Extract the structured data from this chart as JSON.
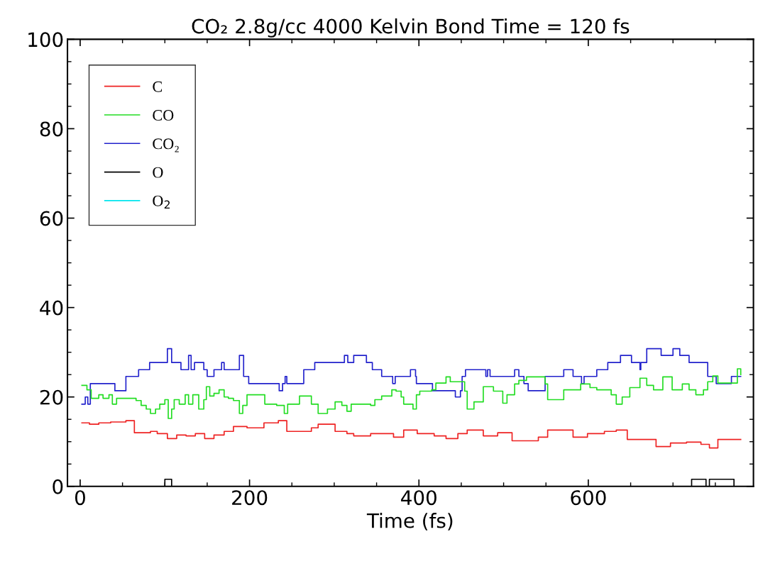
{
  "chart_data": {
    "type": "step",
    "title": "CO₂ 2.8g/cc 4000 Kelvin Bond Time = 120 fs",
    "xlabel": "Time (fs)",
    "xlim": [
      -15,
      795
    ],
    "xticks": [
      0,
      200,
      400,
      600
    ],
    "ylim": [
      0,
      100
    ],
    "yticks": [
      0,
      20,
      40,
      60,
      80,
      100
    ],
    "legend": "top left",
    "grid": false,
    "series": [
      {
        "name": "C",
        "color": "#ee2222",
        "x": [
          2,
          11,
          22,
          36,
          54,
          64,
          83,
          91,
          103,
          114,
          125,
          136,
          147,
          158,
          170,
          181,
          197,
          217,
          234,
          244,
          273,
          281,
          301,
          315,
          323,
          343,
          370,
          382,
          398,
          418,
          432,
          446,
          457,
          476,
          493,
          510,
          541,
          552,
          582,
          599,
          619,
          633,
          646,
          680,
          697,
          716,
          733,
          743,
          753,
          780
        ],
        "values": [
          14.2,
          13.9,
          14.2,
          14.4,
          14.7,
          12,
          12.3,
          11.8,
          10.7,
          11.5,
          11.3,
          11.8,
          10.7,
          11.5,
          12.3,
          13.4,
          13.1,
          14.2,
          14.7,
          12.3,
          13.1,
          13.9,
          12.3,
          11.8,
          11.3,
          11.8,
          11,
          12.6,
          11.8,
          11.3,
          10.7,
          11.8,
          12.6,
          11.3,
          12,
          10.2,
          11,
          12.6,
          11,
          11.8,
          12.3,
          12.6,
          10.5,
          8.9,
          9.7,
          9.9,
          9.4,
          8.6,
          10.5,
          10.5
        ]
      },
      {
        "name": "CO",
        "color": "#22dd22",
        "x": [
          2,
          8,
          13,
          22,
          27,
          34,
          38,
          43,
          55,
          66,
          72,
          78,
          83,
          89,
          94,
          100,
          104,
          108,
          111,
          117,
          124,
          128,
          133,
          140,
          146,
          149,
          153,
          158,
          164,
          170,
          175,
          181,
          188,
          192,
          197,
          218,
          232,
          241,
          245,
          259,
          267,
          273,
          281,
          292,
          301,
          309,
          315,
          320,
          343,
          348,
          356,
          368,
          373,
          379,
          382,
          393,
          397,
          401,
          415,
          420,
          432,
          437,
          450,
          454,
          457,
          465,
          476,
          488,
          499,
          504,
          513,
          518,
          527,
          549,
          552,
          571,
          591,
          602,
          610,
          627,
          633,
          640,
          649,
          661,
          669,
          677,
          688,
          699,
          711,
          719,
          727,
          736,
          741,
          747,
          753,
          771,
          776,
          780
        ],
        "values": [
          22.6,
          21.6,
          19.7,
          20.5,
          19.7,
          20.5,
          18.4,
          19.7,
          19.7,
          19.2,
          18.1,
          17.3,
          16.3,
          17.3,
          18.4,
          19.4,
          15.2,
          17.3,
          19.4,
          18.4,
          20.5,
          18.4,
          20.5,
          17.3,
          19.4,
          22.3,
          20.2,
          20.8,
          21.6,
          20,
          19.7,
          19.2,
          16.3,
          18.1,
          20.5,
          18.4,
          18.1,
          16.3,
          18.4,
          20.2,
          20.2,
          18.4,
          16.3,
          17.3,
          18.9,
          18.1,
          16.8,
          18.4,
          18.1,
          19.4,
          20.2,
          21.6,
          21.3,
          20,
          18.4,
          17.3,
          20.5,
          21.3,
          21.6,
          23.1,
          24.5,
          23.4,
          23.4,
          21.3,
          17.3,
          18.9,
          22.3,
          21.3,
          18.6,
          20.5,
          22.9,
          23.7,
          24.5,
          22.9,
          19.4,
          21.6,
          22.9,
          22.1,
          21.6,
          20.5,
          18.4,
          20,
          22.1,
          24.2,
          22.6,
          21.6,
          24.5,
          21.6,
          22.9,
          21.6,
          20.5,
          21.6,
          23.4,
          24.7,
          23.1,
          23.1,
          26.3,
          25
        ]
      },
      {
        "name": "CO₂",
        "color": "#2222cc",
        "x": [
          2,
          6,
          9,
          12,
          41,
          54,
          69,
          82,
          103,
          108,
          119,
          128,
          131,
          135,
          146,
          150,
          158,
          167,
          170,
          188,
          193,
          199,
          235,
          239,
          242,
          244,
          264,
          277,
          312,
          316,
          323,
          338,
          345,
          356,
          369,
          372,
          390,
          396,
          397,
          416,
          443,
          449,
          451,
          455,
          479,
          481,
          484,
          513,
          518,
          524,
          529,
          549,
          571,
          582,
          592,
          595,
          610,
          623,
          638,
          651,
          661,
          662,
          669,
          686,
          700,
          708,
          719,
          741,
          751,
          769,
          780
        ],
        "values": [
          18.4,
          20,
          18.4,
          23,
          21.4,
          24.6,
          26.1,
          27.7,
          30.8,
          27.7,
          26.1,
          29.3,
          26.1,
          27.7,
          26.1,
          24.6,
          26.1,
          27.7,
          26.1,
          29.3,
          24.6,
          23,
          21.4,
          23,
          24.6,
          23,
          26.1,
          27.7,
          29.3,
          27.7,
          29.3,
          27.7,
          26.1,
          24.6,
          23,
          24.6,
          26.1,
          24.6,
          23,
          21.4,
          20,
          21.4,
          24.6,
          26.1,
          24.6,
          26.1,
          24.6,
          26.1,
          24.6,
          23,
          21.4,
          24.6,
          26.1,
          24.6,
          23,
          24.6,
          26.1,
          27.7,
          29.3,
          27.7,
          26.1,
          27.7,
          30.8,
          29.3,
          30.8,
          29.3,
          27.7,
          24.6,
          23,
          24.6,
          24.6
        ]
      },
      {
        "name": "O",
        "color": "#000000",
        "x": [
          0,
          100,
          108,
          722,
          739,
          743,
          772,
          780
        ],
        "values": [
          0,
          1.6,
          0,
          1.6,
          0,
          1.6,
          0,
          0
        ]
      },
      {
        "name": "O$_{2}$",
        "color": "#00e5ee"
      }
    ]
  }
}
